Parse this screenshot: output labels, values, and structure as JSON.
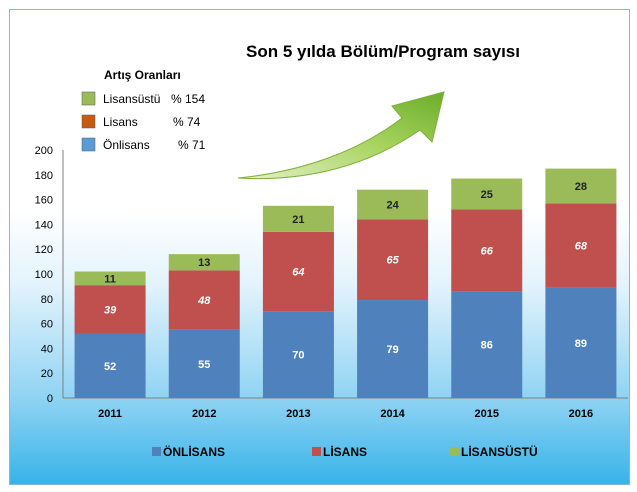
{
  "chart_data": {
    "type": "bar",
    "stacked": true,
    "title": "Son 5 yılda Bölüm/Program sayısı",
    "categories": [
      "2011",
      "2012",
      "2013",
      "2014",
      "2015",
      "2016"
    ],
    "series": [
      {
        "name": "ÖNLİSANS",
        "color": "#4f81bd",
        "values": [
          52,
          55,
          70,
          79,
          86,
          89
        ]
      },
      {
        "name": "LİSANS",
        "color": "#c0504d",
        "values": [
          39,
          48,
          64,
          65,
          66,
          68
        ]
      },
      {
        "name": "LİSANSÜSTÜ",
        "color": "#9bbb59",
        "values": [
          11,
          13,
          21,
          24,
          25,
          28
        ]
      }
    ],
    "ylim": [
      0,
      200
    ],
    "yticks": [
      0,
      20,
      40,
      60,
      80,
      100,
      120,
      140,
      160,
      180,
      200
    ],
    "grid": false,
    "legend_position": "bottom",
    "xlabel": "",
    "ylabel": ""
  },
  "artis_oranlari": {
    "title": "Artış Oranları",
    "items": [
      {
        "label": "Lisansüstü",
        "value": "% 154",
        "color": "#9bbb59"
      },
      {
        "label": "Lisans",
        "value": "% 74",
        "color": "#c55a11"
      },
      {
        "label": "Önlisans",
        "value": "% 71",
        "color": "#5b9bd5"
      }
    ]
  },
  "arrow": {
    "icon": "trend-up-arrow-icon",
    "color": "#8cc63f"
  }
}
